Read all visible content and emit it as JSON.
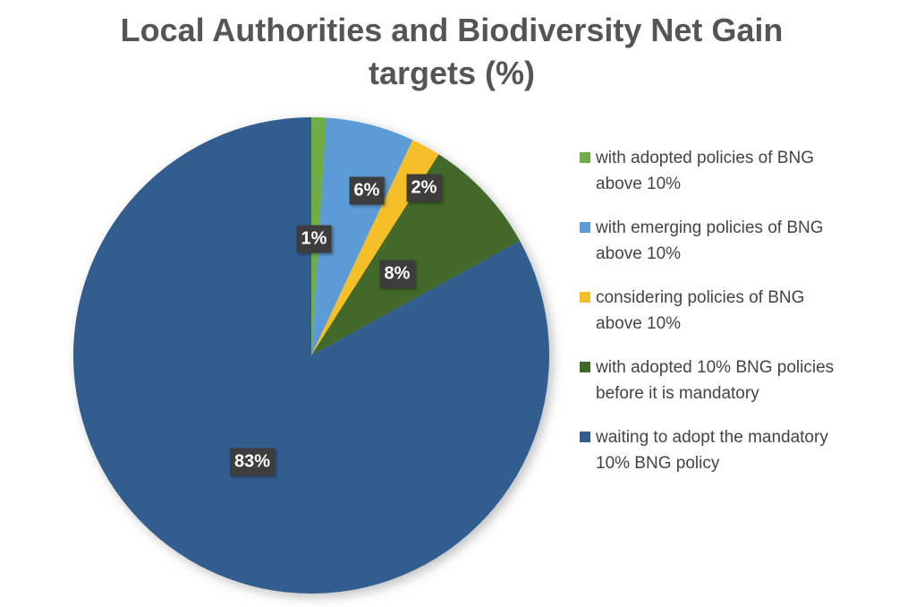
{
  "chart_data": {
    "type": "pie",
    "title": "Local Authorities and Biodiversity Net Gain targets (%)",
    "start_angle": "12 o'clock, clockwise",
    "legend_position": "right",
    "slices": [
      {
        "name": "with adopted policies of BNG above 10%",
        "value": 1,
        "label": "1%",
        "color": "#70ad47"
      },
      {
        "name": "with emerging policies of BNG above 10%",
        "value": 6,
        "label": "6%",
        "color": "#5b9bd5"
      },
      {
        "name": "considering policies of BNG above 10%",
        "value": 2,
        "label": "2%",
        "color": "#f5bf2a"
      },
      {
        "name": "with adopted 10% BNG policies before it is mandatory",
        "value": 8,
        "label": "8%",
        "color": "#43682b"
      },
      {
        "name": "waiting to adopt the mandatory 10% BNG policy",
        "value": 83,
        "label": "83%",
        "color": "#335d8f"
      }
    ]
  }
}
